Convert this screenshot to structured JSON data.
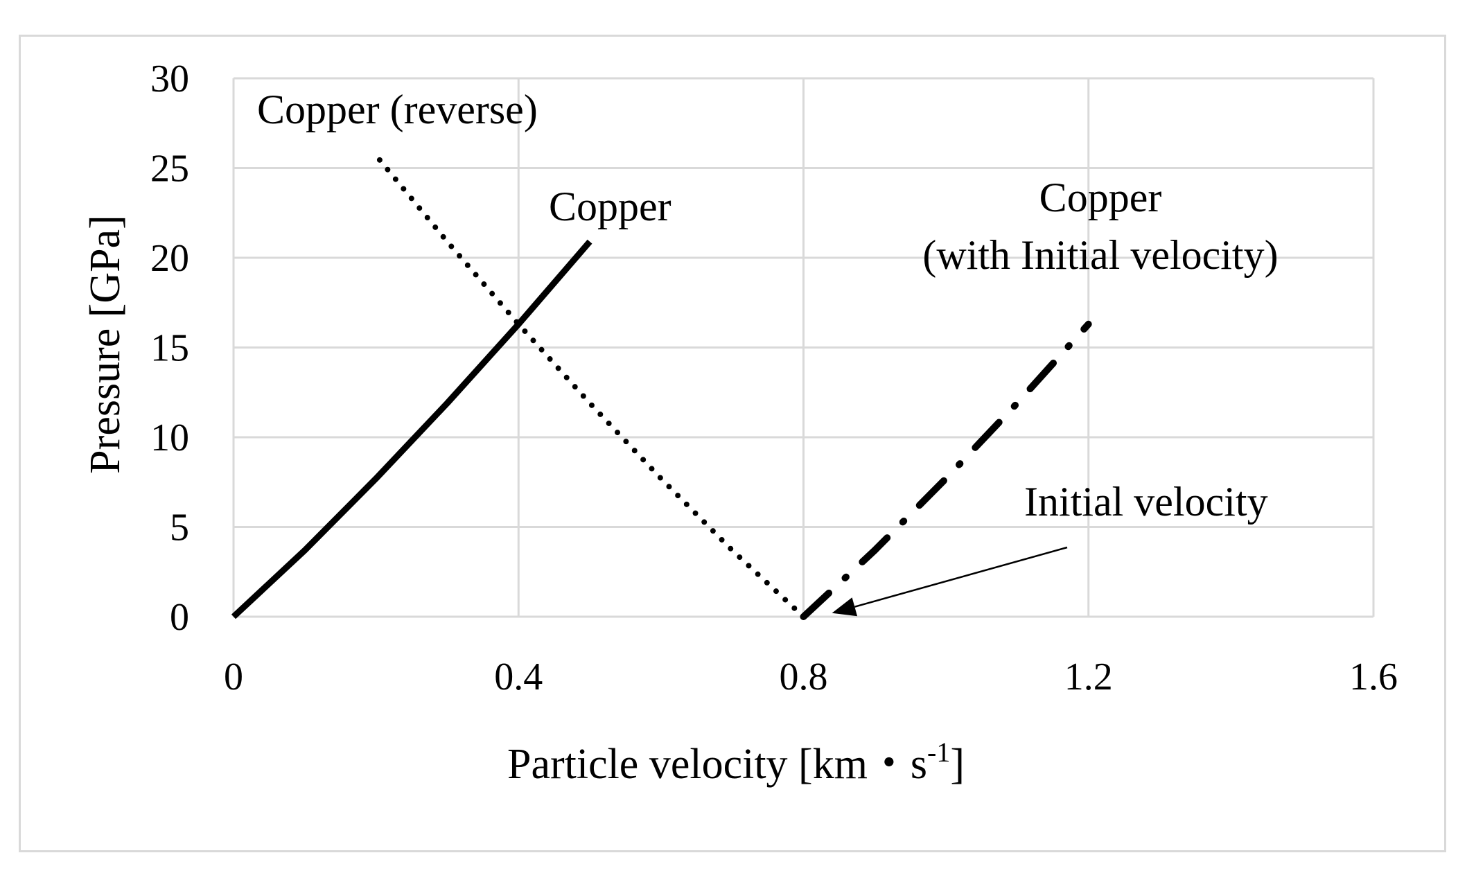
{
  "chart_data": {
    "type": "line",
    "title": "",
    "xlabel": "Particle velocity [km·s-1]",
    "xlabel_parts": {
      "main": "Particle velocity [km・s",
      "sup": "-1",
      "end": "]"
    },
    "ylabel": "Pressure [GPa]",
    "xlim": [
      0,
      1.6
    ],
    "ylim": [
      0,
      30
    ],
    "x_ticks": [
      0,
      0.4,
      0.8,
      1.2,
      1.6
    ],
    "x_tick_labels": [
      "0",
      "0.4",
      "0.8",
      "1.2",
      "1.6"
    ],
    "y_ticks": [
      0,
      5,
      10,
      15,
      20,
      25,
      30
    ],
    "y_tick_labels": [
      "0",
      "5",
      "10",
      "15",
      "20",
      "25",
      "30"
    ],
    "grid": true,
    "series": [
      {
        "name": "Copper",
        "style": "solid",
        "color": "#000000",
        "points": [
          [
            0,
            0
          ],
          [
            0.1,
            3.7
          ],
          [
            0.2,
            7.7
          ],
          [
            0.3,
            11.9
          ],
          [
            0.4,
            16.3
          ],
          [
            0.5,
            20.9
          ]
        ]
      },
      {
        "name": "Copper (reverse)",
        "style": "dotted",
        "color": "#000000",
        "points": [
          [
            0.8,
            0
          ],
          [
            0.7,
            3.7
          ],
          [
            0.6,
            7.7
          ],
          [
            0.5,
            11.9
          ],
          [
            0.4,
            16.3
          ],
          [
            0.3,
            20.9
          ],
          [
            0.2,
            25.7
          ]
        ]
      },
      {
        "name": "Copper (with Initial velocity)",
        "style": "dash-dot",
        "color": "#000000",
        "points": [
          [
            0.8,
            0
          ],
          [
            0.9,
            3.7
          ],
          [
            1.0,
            7.7
          ],
          [
            1.1,
            11.9
          ],
          [
            1.2,
            16.3
          ]
        ]
      }
    ],
    "annotations": [
      {
        "id": "reverse",
        "text": "Copper (reverse)"
      },
      {
        "id": "copper",
        "text": "Copper"
      },
      {
        "id": "initial1",
        "text": "Copper"
      },
      {
        "id": "initial2",
        "text": "(with Initial velocity)"
      },
      {
        "id": "arrow",
        "text": "Initial velocity",
        "arrow_target": [
          0.84,
          0.2
        ]
      }
    ]
  }
}
